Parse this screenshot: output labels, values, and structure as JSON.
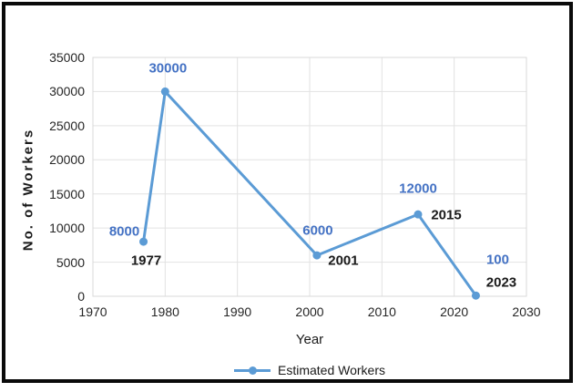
{
  "chart_data": {
    "type": "line",
    "title": "",
    "xlabel": "Year",
    "ylabel": "No. of Workers",
    "xlim": [
      1970,
      2030
    ],
    "ylim": [
      0,
      35000
    ],
    "x_ticks": [
      1970,
      1980,
      1990,
      2000,
      2010,
      2020,
      2030
    ],
    "y_ticks": [
      0,
      5000,
      10000,
      15000,
      20000,
      25000,
      30000,
      35000
    ],
    "grid": true,
    "legend": {
      "position": "bottom",
      "entries": [
        "Estimated Workers"
      ]
    },
    "colors": {
      "series": "#5B9BD5",
      "value_label": "#4472C4",
      "year_label": "#1a1a1a"
    },
    "series": [
      {
        "name": "Estimated Workers",
        "points": [
          {
            "year": 1977,
            "value": 8000,
            "value_label": "8000",
            "value_label_offset": {
              "dx": -21,
              "dy": -11
            },
            "year_label": "1977",
            "year_label_offset": {
              "dx": 3,
              "dy": 21
            }
          },
          {
            "year": 1980,
            "value": 30000,
            "value_label": "30000",
            "value_label_offset": {
              "dx": 3,
              "dy": -25
            },
            "year_label": null,
            "year_label_offset": null
          },
          {
            "year": 2001,
            "value": 6000,
            "value_label": "6000",
            "value_label_offset": {
              "dx": 1,
              "dy": -27
            },
            "year_label": "2001",
            "year_label_offset": {
              "dx": 29,
              "dy": 6
            }
          },
          {
            "year": 2015,
            "value": 12000,
            "value_label": "12000",
            "value_label_offset": {
              "dx": 0,
              "dy": -28
            },
            "year_label": "2015",
            "year_label_offset": {
              "dx": 31,
              "dy": 1
            }
          },
          {
            "year": 2023,
            "value": 100,
            "value_label": "100",
            "value_label_offset": {
              "dx": 24,
              "dy": -39
            },
            "year_label": "2023",
            "year_label_offset": {
              "dx": 28,
              "dy": -14
            }
          }
        ]
      }
    ]
  }
}
